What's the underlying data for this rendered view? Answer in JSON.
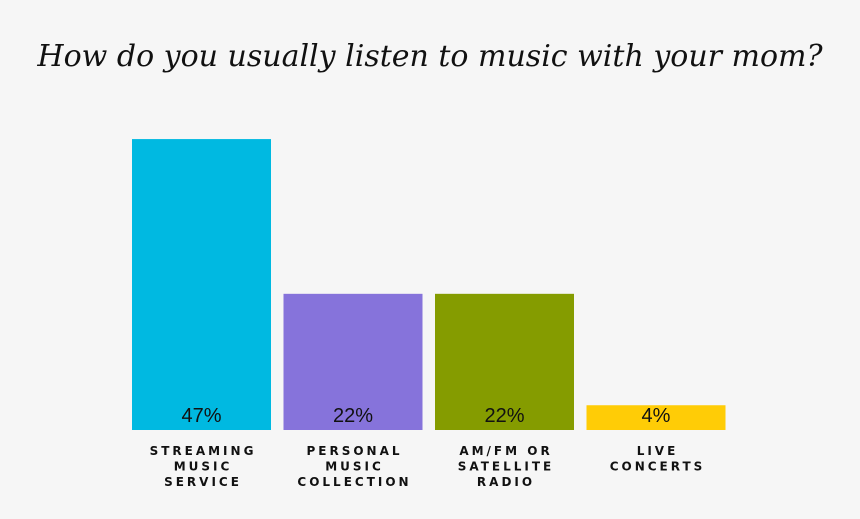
{
  "chart_data": {
    "type": "bar",
    "title": "How do you usually listen to music with your mom?",
    "categories": [
      "STREAMING\nMUSIC\nSERVICE",
      "PERSONAL\nMUSIC\nCOLLECTION",
      "AM/FM OR\nSATELLITE\nRADIO",
      "LIVE\nCONCERTS"
    ],
    "values": [
      47,
      22,
      22,
      4
    ],
    "value_labels": [
      "47%",
      "22%",
      "22%",
      "4%"
    ],
    "colors": [
      "#00b9e1",
      "#8673db",
      "#859c00",
      "#ffcc06"
    ]
  }
}
